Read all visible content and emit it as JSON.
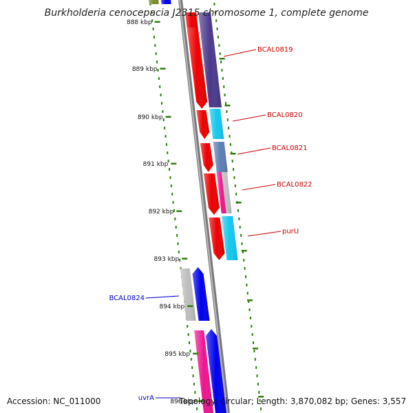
{
  "title": "Burkholderia cenocepacia J2315 chromosome 1, complete genome",
  "footer": {
    "accession": "Accession: NC_011000",
    "summary": "Topology: circular; Length: 3,870,082 bp; Genes: 3,557"
  },
  "ticks": [
    "888 kbp",
    "889 kbp",
    "890 kbp",
    "891 kbp",
    "892 kbp",
    "893 kbp",
    "894 kbp",
    "895 kbp",
    "896 kbp"
  ],
  "gene_labels": [
    {
      "text": "BCAL0819",
      "strand": "forward",
      "color": "#cc0000"
    },
    {
      "text": "BCAL0820",
      "strand": "forward",
      "color": "#cc0000"
    },
    {
      "text": "BCAL0821",
      "strand": "forward",
      "color": "#cc0000"
    },
    {
      "text": "BCAL0822",
      "strand": "forward",
      "color": "#cc0000"
    },
    {
      "text": "purU",
      "strand": "forward",
      "color": "#cc0000"
    },
    {
      "text": "BCAL0824",
      "strand": "reverse",
      "color": "#0000cc"
    },
    {
      "text": "uvrA",
      "strand": "reverse",
      "color": "#0000cc"
    }
  ],
  "colors": {
    "backbone": "#888888",
    "cds_forward": "#ee0000",
    "cds_reverse": "#0000ee",
    "tick": "#2e7d0a",
    "dots": "#2e7d0a",
    "cog_purple": "#4b3a8c",
    "cog_cyan": "#13c8f0",
    "cog_steelblue": "#5b7fb4",
    "cog_magenta": "#ee1590",
    "cog_gray": "#bdbdbd",
    "cog_olive": "#7b8f2a"
  }
}
